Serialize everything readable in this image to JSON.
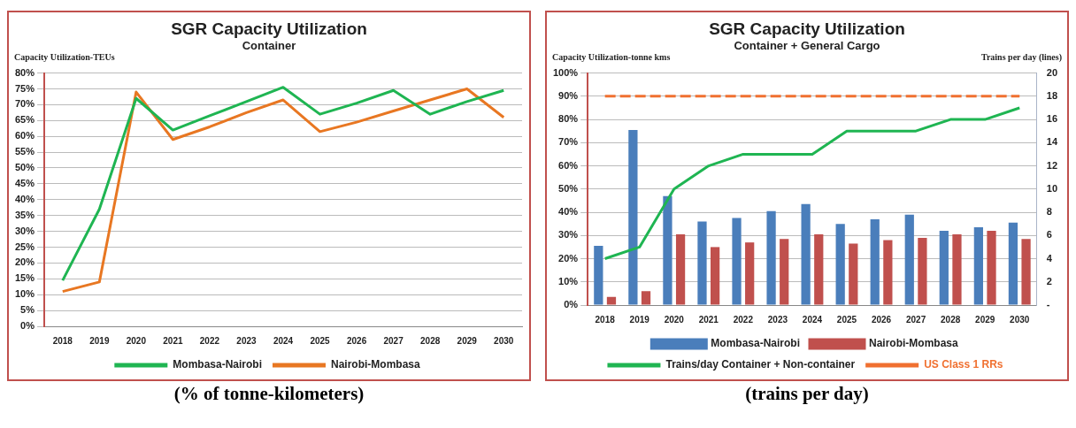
{
  "chart_data": [
    {
      "type": "line",
      "title": "SGR Capacity Utilization",
      "subtitle": "Container",
      "ylabel": "Capacity Utilization-TEUs",
      "categories": [
        "2018",
        "2019",
        "2020",
        "2021",
        "2022",
        "2023",
        "2024",
        "2025",
        "2026",
        "2027",
        "2028",
        "2029",
        "2030"
      ],
      "series": [
        {
          "name": "Mombasa-Nairobi",
          "color": "#1fb552",
          "values": [
            14.5,
            37,
            72,
            62,
            66.5,
            71,
            75.5,
            67,
            70.5,
            74.5,
            67,
            71,
            74.5
          ]
        },
        {
          "name": "Nairobi-Mombasa",
          "color": "#e87722",
          "values": [
            11,
            14,
            74,
            59,
            63,
            67.5,
            71.5,
            61.5,
            64.5,
            68,
            71.5,
            75,
            66
          ]
        }
      ],
      "ylim": [
        0,
        80
      ],
      "yticks": [
        {
          "value": 0,
          "label": "0%"
        },
        {
          "value": 5,
          "label": "5%"
        },
        {
          "value": 10,
          "label": "10%"
        },
        {
          "value": 15,
          "label": "15%"
        },
        {
          "value": 20,
          "label": "20%"
        },
        {
          "value": 25,
          "label": "25%"
        },
        {
          "value": 30,
          "label": "30%"
        },
        {
          "value": 35,
          "label": "35%"
        },
        {
          "value": 40,
          "label": "40%"
        },
        {
          "value": 45,
          "label": "45%"
        },
        {
          "value": 50,
          "label": "50%"
        },
        {
          "value": 55,
          "label": "55%"
        },
        {
          "value": 60,
          "label": "60%"
        },
        {
          "value": 65,
          "label": "65%"
        },
        {
          "value": 70,
          "label": "70%"
        },
        {
          "value": 75,
          "label": "75%"
        },
        {
          "value": 80,
          "label": "80%"
        }
      ],
      "grid": "y",
      "legend": "bottom",
      "marker": "none",
      "annotations": [
        "(% of tonne-kilometers)"
      ]
    },
    {
      "type": "bar",
      "title": "SGR Capacity Utilization",
      "subtitle": "Container + General Cargo",
      "ylabel": "Capacity Utilization-tonne kms",
      "y2label": "Trains per day (lines)",
      "categories": [
        "2018",
        "2019",
        "2020",
        "2021",
        "2022",
        "2023",
        "2024",
        "2025",
        "2026",
        "2027",
        "2028",
        "2029",
        "2030"
      ],
      "series": [
        {
          "name": "Mombasa-Nairobi",
          "color": "#4a7ebb",
          "values": [
            25.5,
            75.5,
            47,
            36,
            37.5,
            40.5,
            43.5,
            35,
            37,
            39,
            32,
            33.5,
            35.5
          ]
        },
        {
          "name": "Nairobi-Mombasa",
          "color": "#c0504d",
          "values": [
            3.5,
            6,
            30.5,
            25,
            27,
            28.5,
            30.5,
            26.5,
            28,
            29,
            30.5,
            32,
            28.5
          ]
        },
        {
          "name": "Trains/day Container + Non-container",
          "type": "line",
          "axis": "y2",
          "color": "#1fb552",
          "values": [
            4,
            5,
            10,
            12,
            13,
            13,
            13,
            15,
            15,
            15,
            16,
            16,
            17
          ]
        },
        {
          "name": "US Class 1 RRs",
          "type": "line",
          "axis": "y2",
          "color": "#f07030",
          "line_style": "dashed",
          "values": [
            18,
            18,
            18,
            18,
            18,
            18,
            18,
            18,
            18,
            18,
            18,
            18,
            18
          ]
        }
      ],
      "ylim": [
        0,
        100
      ],
      "yticks": [
        {
          "value": 0,
          "label": "0%"
        },
        {
          "value": 10,
          "label": "10%"
        },
        {
          "value": 20,
          "label": "20%"
        },
        {
          "value": 30,
          "label": "30%"
        },
        {
          "value": 40,
          "label": "40%"
        },
        {
          "value": 50,
          "label": "50%"
        },
        {
          "value": 60,
          "label": "60%"
        },
        {
          "value": 70,
          "label": "70%"
        },
        {
          "value": 80,
          "label": "80%"
        },
        {
          "value": 90,
          "label": "90%"
        },
        {
          "value": 100,
          "label": "100%"
        }
      ],
      "y2lim": [
        0,
        20
      ],
      "y2ticks": [
        {
          "value": 0,
          "label": "-"
        },
        2,
        4,
        6,
        8,
        10,
        12,
        14,
        16,
        18,
        20
      ],
      "grid": "y",
      "legend": "bottom",
      "marker": "none",
      "annotations": [
        "(trains per day)"
      ]
    }
  ]
}
